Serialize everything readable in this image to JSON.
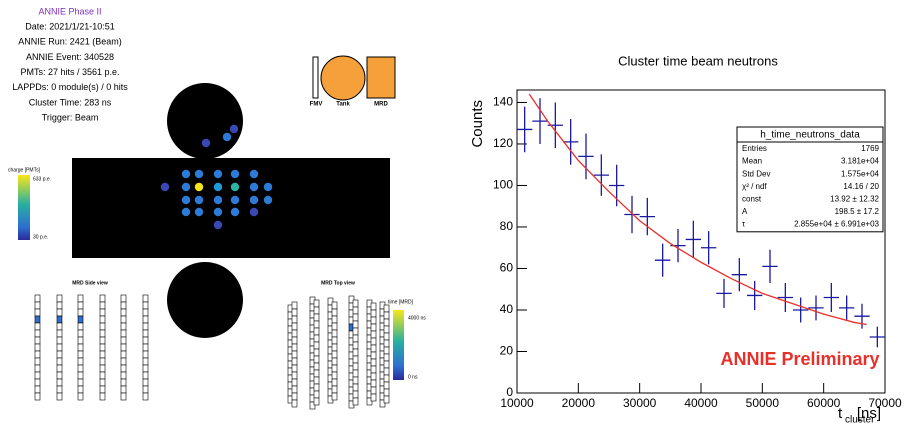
{
  "event_display": {
    "title": "ANNIE Phase II",
    "info": [
      "Date: 2021/1/21-10:51",
      "ANNIE Run: 2421 (Beam)",
      "ANNIE Event: 340528",
      "PMTs: 27 hits / 3561 p.e.",
      "LAPPDs: 0 module(s) / 0 hits",
      "Cluster Time: 283 ns",
      "Trigger: Beam"
    ],
    "charge_scale": {
      "title": "charge [PMTs]",
      "max_label": "633 p.e.",
      "min_label": "30 p.e."
    },
    "detector_legend": [
      "FMV",
      "Tank",
      "MRD"
    ],
    "mrd_side_title": "MRD Side view",
    "mrd_top_title": "MRD Top view",
    "time_scale": {
      "title": "time [MRD]",
      "max_label": "4000 ns",
      "min_label": "0 ns"
    }
  },
  "chart_data": {
    "type": "histogram",
    "title": "Cluster time beam neutrons",
    "y_label": "Counts",
    "x_label": "t",
    "x_label_sub": "cluster",
    "x_label_unit": "[ns]",
    "annotation": "ANNIE Preliminary",
    "bins": [
      10000,
      12500,
      15000,
      17500,
      20000,
      22500,
      25000,
      27500,
      30000,
      32500,
      35000,
      37500,
      40000,
      42500,
      45000,
      47500,
      50000,
      52500,
      55000,
      57500,
      60000,
      62500,
      65000,
      67500,
      70000
    ],
    "values": [
      127,
      131,
      129,
      121,
      114,
      105,
      100,
      86,
      85,
      64,
      71,
      74,
      70,
      48,
      57,
      47,
      61,
      46,
      40,
      41,
      46,
      41,
      37,
      27
    ],
    "errors": [
      11,
      11,
      11,
      11,
      11,
      10,
      10,
      9,
      9,
      8,
      8,
      9,
      8,
      7,
      8,
      7,
      8,
      7,
      6,
      6,
      7,
      6,
      6,
      5
    ],
    "color": "#1a1aa0",
    "fit": {
      "color": "#e8302a",
      "x": [
        12000,
        15000,
        20000,
        25000,
        30000,
        35000,
        40000,
        45000,
        50000,
        55000,
        60000,
        65000,
        67000
      ],
      "values": [
        144,
        131,
        112,
        97,
        83,
        72,
        63,
        55,
        48,
        43,
        38,
        34,
        33
      ]
    },
    "xlim": [
      10000,
      70000
    ],
    "xticks": [
      10000,
      20000,
      30000,
      40000,
      50000,
      60000,
      70000
    ],
    "ylim": [
      0,
      146
    ],
    "yticks": [
      0,
      20,
      40,
      60,
      80,
      100,
      120,
      140
    ],
    "stats": {
      "title": "h_time_neutrons_data",
      "rows": [
        [
          "Entries",
          "1769"
        ],
        [
          "Mean",
          "3.181e+04"
        ],
        [
          "Std Dev",
          "1.575e+04"
        ],
        [
          "χ² / ndf",
          "14.16 / 20"
        ],
        [
          "const",
          "13.92 ± 12.32"
        ],
        [
          "A",
          "198.5 ± 17.2"
        ],
        [
          "τ",
          "2.855e+04 ± 6.991e+03"
        ]
      ]
    }
  }
}
